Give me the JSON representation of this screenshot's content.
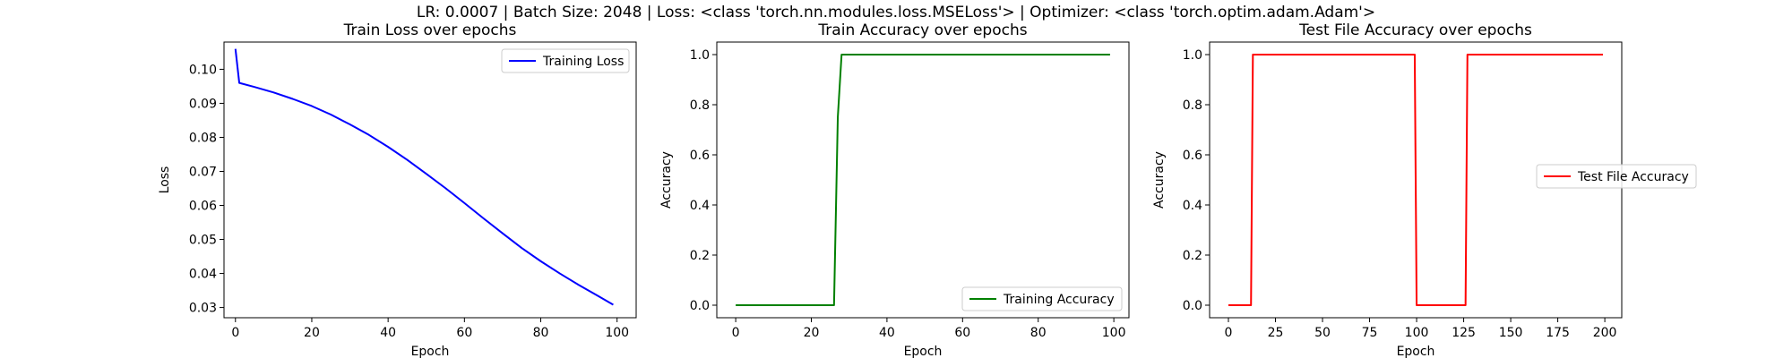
{
  "suptitle": "LR: 0.0007 | Batch Size: 2048 | Loss: <class 'torch.nn.modules.loss.MSELoss'> | Optimizer: <class 'torch.optim.adam.Adam'>",
  "chart_data": [
    {
      "type": "line",
      "title": "Train Loss over epochs",
      "xlabel": "Epoch",
      "ylabel": "Loss",
      "xlim": [
        -3,
        105
      ],
      "ylim": [
        0.027,
        0.108
      ],
      "xticks": [
        0,
        20,
        40,
        60,
        80,
        100
      ],
      "yticks": [
        0.03,
        0.04,
        0.05,
        0.06,
        0.07,
        0.08,
        0.09,
        0.1
      ],
      "ytick_labels": [
        "0.03",
        "0.04",
        "0.05",
        "0.06",
        "0.07",
        "0.08",
        "0.09",
        "0.10"
      ],
      "legend_loc": "upper right",
      "grid": false,
      "series": [
        {
          "name": "Training Loss",
          "color": "#0000ff",
          "x": [
            0,
            1,
            5,
            10,
            15,
            20,
            25,
            30,
            35,
            40,
            45,
            50,
            55,
            60,
            65,
            70,
            75,
            80,
            85,
            90,
            95,
            99
          ],
          "y": [
            0.106,
            0.096,
            0.0948,
            0.0932,
            0.0913,
            0.0892,
            0.0867,
            0.0838,
            0.0807,
            0.0772,
            0.0734,
            0.0693,
            0.0651,
            0.0607,
            0.0562,
            0.0518,
            0.0475,
            0.0436,
            0.04,
            0.0366,
            0.0334,
            0.0308
          ]
        }
      ]
    },
    {
      "type": "line",
      "title": "Train Accuracy over epochs",
      "xlabel": "Epoch",
      "ylabel": "Accuracy",
      "xlim": [
        -5,
        104
      ],
      "ylim": [
        -0.05,
        1.05
      ],
      "xticks": [
        0,
        20,
        40,
        60,
        80,
        100
      ],
      "yticks": [
        0.0,
        0.2,
        0.4,
        0.6,
        0.8,
        1.0
      ],
      "ytick_labels": [
        "0.0",
        "0.2",
        "0.4",
        "0.6",
        "0.8",
        "1.0"
      ],
      "legend_loc": "lower right",
      "grid": false,
      "series": [
        {
          "name": "Training Accuracy",
          "color": "#008000",
          "x": [
            0,
            26,
            27,
            28,
            99
          ],
          "y": [
            0.0,
            0.0,
            0.75,
            1.0,
            1.0
          ]
        }
      ]
    },
    {
      "type": "line",
      "title": "Test File Accuracy over epochs",
      "xlabel": "Epoch",
      "ylabel": "Accuracy",
      "xlim": [
        -10,
        209
      ],
      "ylim": [
        -0.05,
        1.05
      ],
      "xticks": [
        0,
        25,
        50,
        75,
        100,
        125,
        150,
        175,
        200
      ],
      "yticks": [
        0.0,
        0.2,
        0.4,
        0.6,
        0.8,
        1.0
      ],
      "ytick_labels": [
        "0.0",
        "0.2",
        "0.4",
        "0.6",
        "0.8",
        "1.0"
      ],
      "legend_loc": "center right",
      "grid": false,
      "series": [
        {
          "name": "Test File Accuracy",
          "color": "#ff0000",
          "x": [
            0,
            12,
            13,
            99,
            100,
            126,
            127,
            199
          ],
          "y": [
            0.0,
            0.0,
            1.0,
            1.0,
            0.0,
            0.0,
            1.0,
            1.0
          ]
        }
      ]
    }
  ]
}
